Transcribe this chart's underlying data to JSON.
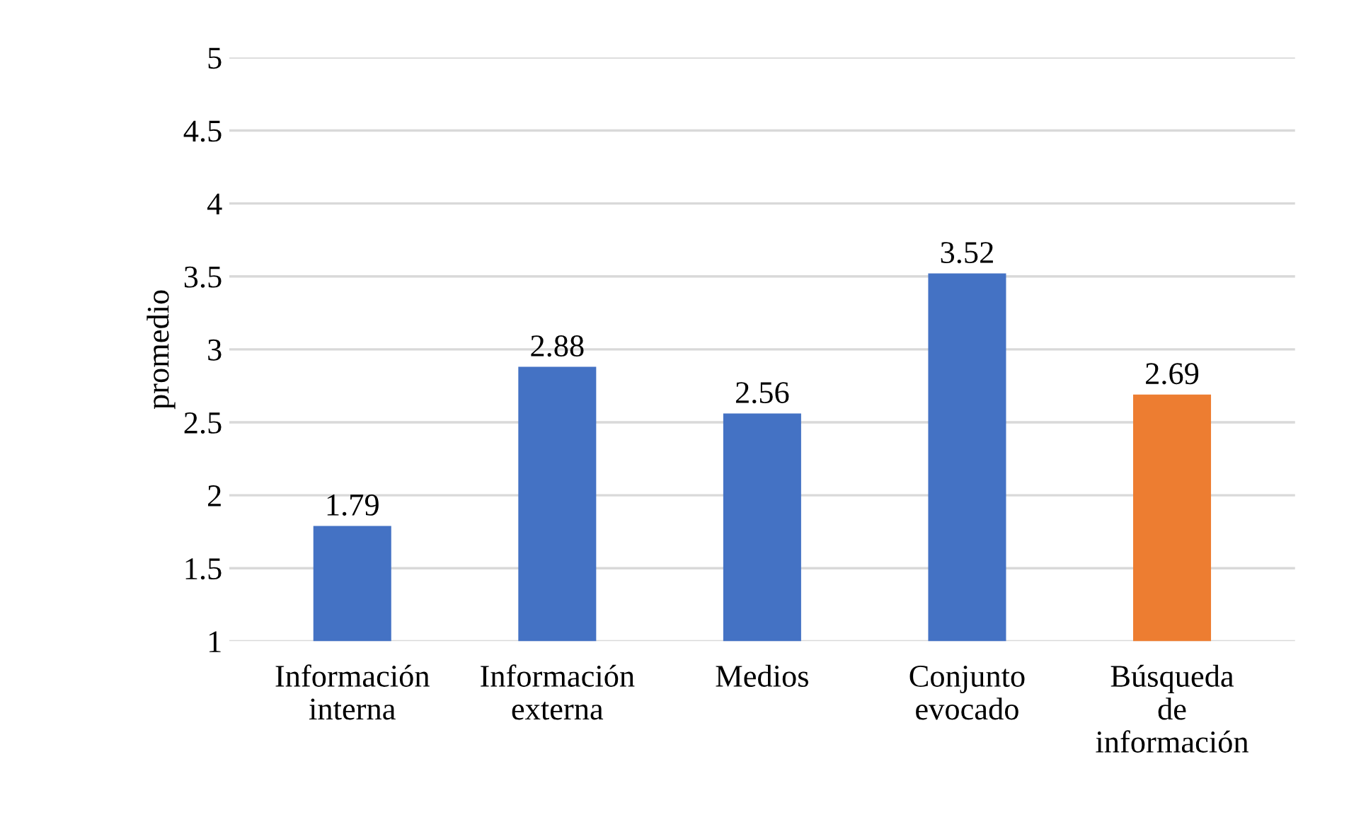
{
  "chart_data": {
    "type": "bar",
    "ylabel": "promedio",
    "categories": [
      "Información\ninterna",
      "Información\nexterna",
      "Medios",
      "Conjunto\nevocado",
      "Búsqueda\nde\ninformación"
    ],
    "values": [
      1.79,
      2.88,
      2.56,
      3.52,
      2.69
    ],
    "colors": [
      "#4472c4",
      "#4472c4",
      "#4472c4",
      "#4472c4",
      "#ed7d31"
    ],
    "ylim": [
      1,
      5
    ],
    "yticks": [
      1,
      1.5,
      2,
      2.5,
      3,
      3.5,
      4,
      4.5,
      5
    ],
    "grid": "y",
    "data_labels": true
  }
}
